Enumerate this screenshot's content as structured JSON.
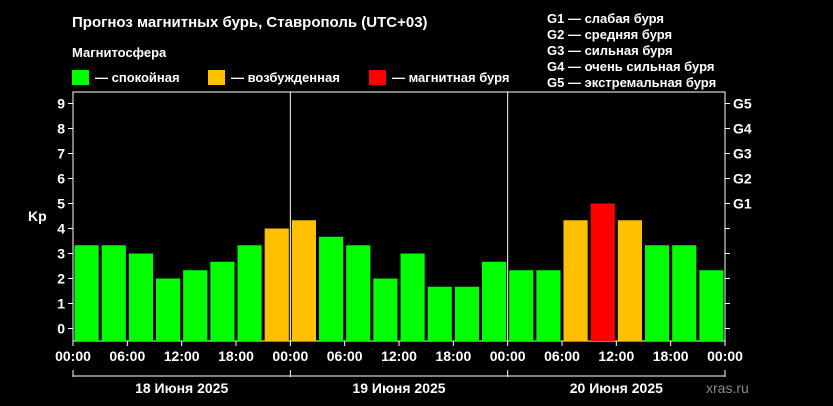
{
  "header": {
    "title": "Прогноз магнитных бурь, Ставрополь (UTC+03)",
    "subtitle": "Магнитосфера"
  },
  "legend": [
    {
      "label": "— спокойная",
      "color": "#00ff00"
    },
    {
      "label": "— возбужденная",
      "color": "#ffc000"
    },
    {
      "label": "— магнитная буря",
      "color": "#ff0000"
    }
  ],
  "storm_scale": [
    "G1 — слабая буря",
    "G2 — средняя буря",
    "G3 — сильная буря",
    "G4 — очень сильная буря",
    "G5 — экстремальная буря"
  ],
  "watermark": "xras.ru",
  "chart_data": {
    "type": "bar",
    "ylabel": "Kp",
    "ylim": [
      0,
      9
    ],
    "yticks": [
      "0",
      "1",
      "2",
      "3",
      "4",
      "5",
      "6",
      "7",
      "8",
      "9"
    ],
    "right_ticks": [
      {
        "kp": 5,
        "label": "G1"
      },
      {
        "kp": 6,
        "label": "G2"
      },
      {
        "kp": 7,
        "label": "G3"
      },
      {
        "kp": 8,
        "label": "G4"
      },
      {
        "kp": 9,
        "label": "G5"
      }
    ],
    "xtick_labels": [
      "00:00",
      "06:00",
      "12:00",
      "18:00",
      "00:00",
      "06:00",
      "12:00",
      "18:00",
      "00:00",
      "06:00",
      "12:00",
      "18:00",
      "00:00"
    ],
    "days": [
      "18 Июня 2025",
      "19 Июня 2025",
      "20 Июня 2025"
    ],
    "colors": {
      "quiet": "#00ff00",
      "active": "#ffc000",
      "storm": "#ff0000"
    },
    "values": [
      3.33,
      3.33,
      3.0,
      2.0,
      2.33,
      2.67,
      3.33,
      4.0,
      4.33,
      3.67,
      3.33,
      2.0,
      3.0,
      1.67,
      1.67,
      2.67,
      2.33,
      2.33,
      4.33,
      5.0,
      4.33,
      3.33,
      3.33,
      2.33
    ]
  }
}
